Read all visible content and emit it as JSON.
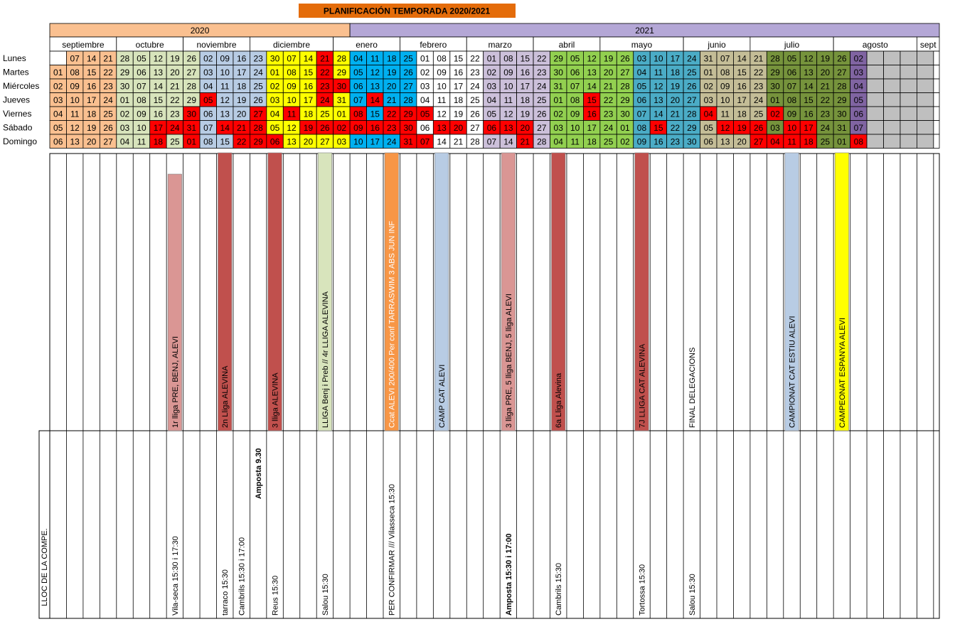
{
  "title": "PLANIFICACIÓN TEMPORADA 2020/2021",
  "years": [
    "2020",
    "2021"
  ],
  "months": [
    "septiembre",
    "octubre",
    "noviembre",
    "diciembre",
    "enero",
    "febrero",
    "marzo",
    "abril",
    "mayo",
    "junio",
    "julio",
    "agosto",
    "sept"
  ],
  "day_names": [
    "Lunes",
    "Martes",
    "Miércoles",
    "Jueves",
    "Viernes",
    "Sábado",
    "Domingo"
  ],
  "lloc_label": "LLOC DE LA COMPE.",
  "colors": {
    "title_bg": "#e46c0a",
    "year_2020": "#fac090",
    "year_2021": "#b4a7d6",
    "week_fill": {
      "peach": "#fac090",
      "pale_green": "#d8e4bc",
      "light_blue": "#b8cce4",
      "yellow": "#ffff00",
      "cyan": "#00b0f0",
      "white": "#ffffff",
      "lavender": "#ccc0da",
      "green": "#92d050",
      "mid_blue": "#4bacc6",
      "khaki": "#c4bd97",
      "olive": "#76933c",
      "purple": "#8064a2",
      "grey": "#bfbfbf"
    },
    "weekend_red": "#ff0000",
    "bar_colors": {
      "pink": "#da9694",
      "brick": "#c0504d",
      "pale_green": "#d8e4bc",
      "orange": "#f79646",
      "light_blue": "#b8cce4",
      "yellow": "#ffff00"
    }
  },
  "weeks": [
    {
      "month": "septiembre",
      "days": [
        "",
        "01",
        "02",
        "03",
        "04",
        "05",
        "06"
      ],
      "fill": "peach"
    },
    {
      "month": "septiembre",
      "days": [
        "07",
        "08",
        "09",
        "10",
        "11",
        "12",
        "13"
      ],
      "fill": "peach"
    },
    {
      "month": "septiembre",
      "days": [
        "14",
        "15",
        "16",
        "17",
        "18",
        "19",
        "20"
      ],
      "fill": "peach"
    },
    {
      "month": "septiembre",
      "days": [
        "21",
        "22",
        "23",
        "24",
        "25",
        "26",
        "27"
      ],
      "fill": "peach"
    },
    {
      "month": "octubre",
      "days": [
        "28",
        "29",
        "30",
        "01",
        "02",
        "03",
        "04"
      ],
      "fill": "pale_green"
    },
    {
      "month": "octubre",
      "days": [
        "05",
        "06",
        "07",
        "08",
        "09",
        "10",
        "11"
      ],
      "fill": "pale_green"
    },
    {
      "month": "octubre",
      "days": [
        "12",
        "13",
        "14",
        "15",
        "16",
        "17",
        "18"
      ],
      "fill": "pale_green"
    },
    {
      "month": "octubre",
      "days": [
        "19",
        "20",
        "21",
        "22",
        "23",
        "24",
        "25"
      ],
      "fill": "pale_green"
    },
    {
      "month": "noviembre",
      "days": [
        "26",
        "27",
        "28",
        "29",
        "30",
        "31",
        "01"
      ],
      "fill": "pale_green"
    },
    {
      "month": "noviembre",
      "days": [
        "02",
        "03",
        "04",
        "05",
        "06",
        "07",
        "08"
      ],
      "fill": "light_blue"
    },
    {
      "month": "noviembre",
      "days": [
        "09",
        "10",
        "11",
        "12",
        "13",
        "14",
        "15"
      ],
      "fill": "light_blue"
    },
    {
      "month": "noviembre",
      "days": [
        "16",
        "17",
        "18",
        "19",
        "20",
        "21",
        "22"
      ],
      "fill": "light_blue"
    },
    {
      "month": "diciembre",
      "days": [
        "23",
        "24",
        "25",
        "26",
        "27",
        "28",
        "29"
      ],
      "fill": "light_blue"
    },
    {
      "month": "diciembre",
      "days": [
        "30",
        "01",
        "02",
        "03",
        "04",
        "05",
        "06"
      ],
      "fill": "yellow"
    },
    {
      "month": "diciembre",
      "days": [
        "07",
        "08",
        "09",
        "10",
        "11",
        "12",
        "13"
      ],
      "fill": "yellow"
    },
    {
      "month": "diciembre",
      "days": [
        "14",
        "15",
        "16",
        "17",
        "18",
        "19",
        "20"
      ],
      "fill": "yellow"
    },
    {
      "month": "diciembre",
      "days": [
        "21",
        "22",
        "23",
        "24",
        "25",
        "26",
        "27"
      ],
      "fill": "yellow"
    },
    {
      "month": "enero",
      "days": [
        "28",
        "29",
        "30",
        "31",
        "01",
        "02",
        "03"
      ],
      "fill": "yellow"
    },
    {
      "month": "enero",
      "days": [
        "04",
        "05",
        "06",
        "07",
        "08",
        "09",
        "10"
      ],
      "fill": "cyan"
    },
    {
      "month": "enero",
      "days": [
        "11",
        "12",
        "13",
        "14",
        "15",
        "16",
        "17"
      ],
      "fill": "cyan"
    },
    {
      "month": "enero",
      "days": [
        "18",
        "19",
        "20",
        "21",
        "22",
        "23",
        "24"
      ],
      "fill": "cyan"
    },
    {
      "month": "febrero",
      "days": [
        "25",
        "26",
        "27",
        "28",
        "29",
        "30",
        "31"
      ],
      "fill": "cyan"
    },
    {
      "month": "febrero",
      "days": [
        "01",
        "02",
        "03",
        "04",
        "05",
        "06",
        "07"
      ],
      "fill": "white"
    },
    {
      "month": "febrero",
      "days": [
        "08",
        "09",
        "10",
        "11",
        "12",
        "13",
        "14"
      ],
      "fill": "white"
    },
    {
      "month": "febrero",
      "days": [
        "15",
        "16",
        "17",
        "18",
        "19",
        "20",
        "21"
      ],
      "fill": "white"
    },
    {
      "month": "marzo",
      "days": [
        "22",
        "23",
        "24",
        "25",
        "26",
        "27",
        "28"
      ],
      "fill": "white"
    },
    {
      "month": "marzo",
      "days": [
        "01",
        "02",
        "03",
        "04",
        "05",
        "06",
        "07"
      ],
      "fill": "lavender"
    },
    {
      "month": "marzo",
      "days": [
        "08",
        "09",
        "10",
        "11",
        "12",
        "13",
        "14"
      ],
      "fill": "lavender"
    },
    {
      "month": "marzo",
      "days": [
        "15",
        "16",
        "17",
        "18",
        "19",
        "20",
        "21"
      ],
      "fill": "lavender"
    },
    {
      "month": "abril",
      "days": [
        "22",
        "23",
        "24",
        "25",
        "26",
        "27",
        "28"
      ],
      "fill": "lavender"
    },
    {
      "month": "abril",
      "days": [
        "29",
        "30",
        "31",
        "01",
        "02",
        "03",
        "04"
      ],
      "fill": "green"
    },
    {
      "month": "abril",
      "days": [
        "05",
        "06",
        "07",
        "08",
        "09",
        "10",
        "11"
      ],
      "fill": "green"
    },
    {
      "month": "abril",
      "days": [
        "12",
        "13",
        "14",
        "15",
        "16",
        "17",
        "18"
      ],
      "fill": "green"
    },
    {
      "month": "mayo",
      "days": [
        "19",
        "20",
        "21",
        "22",
        "23",
        "24",
        "25"
      ],
      "fill": "green"
    },
    {
      "month": "mayo",
      "days": [
        "26",
        "27",
        "28",
        "29",
        "30",
        "01",
        "02"
      ],
      "fill": "green"
    },
    {
      "month": "mayo",
      "days": [
        "03",
        "04",
        "05",
        "06",
        "07",
        "08",
        "09"
      ],
      "fill": "mid_blue"
    },
    {
      "month": "mayo",
      "days": [
        "10",
        "11",
        "12",
        "13",
        "14",
        "15",
        "16"
      ],
      "fill": "mid_blue"
    },
    {
      "month": "mayo",
      "days": [
        "17",
        "18",
        "19",
        "20",
        "21",
        "22",
        "23"
      ],
      "fill": "mid_blue"
    },
    {
      "month": "junio",
      "days": [
        "24",
        "25",
        "26",
        "27",
        "28",
        "29",
        "30"
      ],
      "fill": "mid_blue"
    },
    {
      "month": "junio",
      "days": [
        "31",
        "01",
        "02",
        "03",
        "04",
        "05",
        "06"
      ],
      "fill": "khaki"
    },
    {
      "month": "junio",
      "days": [
        "07",
        "08",
        "09",
        "10",
        "11",
        "12",
        "13"
      ],
      "fill": "khaki"
    },
    {
      "month": "junio",
      "days": [
        "14",
        "15",
        "16",
        "17",
        "18",
        "19",
        "20"
      ],
      "fill": "khaki"
    },
    {
      "month": "julio",
      "days": [
        "21",
        "22",
        "23",
        "24",
        "25",
        "26",
        "27"
      ],
      "fill": "khaki"
    },
    {
      "month": "julio",
      "days": [
        "28",
        "29",
        "30",
        "01",
        "02",
        "03",
        "04"
      ],
      "fill": "olive"
    },
    {
      "month": "julio",
      "days": [
        "05",
        "06",
        "07",
        "08",
        "09",
        "10",
        "11"
      ],
      "fill": "olive"
    },
    {
      "month": "julio",
      "days": [
        "12",
        "13",
        "14",
        "15",
        "16",
        "17",
        "18"
      ],
      "fill": "olive"
    },
    {
      "month": "julio",
      "days": [
        "19",
        "20",
        "21",
        "22",
        "23",
        "24",
        "25"
      ],
      "fill": "olive"
    },
    {
      "month": "agosto",
      "days": [
        "26",
        "27",
        "28",
        "29",
        "30",
        "31",
        "01"
      ],
      "fill": "olive"
    },
    {
      "month": "agosto",
      "days": [
        "02",
        "03",
        "04",
        "05",
        "06",
        "07",
        "08"
      ],
      "fill": "purple"
    },
    {
      "month": "agosto",
      "days": [
        "",
        "",
        "",
        "",
        "",
        "",
        ""
      ],
      "fill": "grey"
    },
    {
      "month": "agosto",
      "days": [
        "",
        "",
        "",
        "",
        "",
        "",
        ""
      ],
      "fill": "grey"
    },
    {
      "month": "agosto",
      "days": [
        "",
        "",
        "",
        "",
        "",
        "",
        ""
      ],
      "fill": "grey"
    },
    {
      "month": "sept",
      "days": [
        "",
        "",
        "",
        "",
        "",
        "",
        ""
      ],
      "fill": "grey"
    }
  ],
  "red_days": [
    [
      6,
      5
    ],
    [
      6,
      6
    ],
    [
      7,
      5
    ],
    [
      8,
      4
    ],
    [
      8,
      5
    ],
    [
      8,
      6
    ],
    [
      9,
      3
    ],
    [
      10,
      5
    ],
    [
      11,
      5
    ],
    [
      11,
      6
    ],
    [
      12,
      4
    ],
    [
      12,
      5
    ],
    [
      12,
      6
    ],
    [
      13,
      6
    ],
    [
      14,
      4
    ],
    [
      15,
      5
    ],
    [
      16,
      0
    ],
    [
      16,
      1
    ],
    [
      16,
      2
    ],
    [
      16,
      3
    ],
    [
      16,
      5
    ],
    [
      17,
      2
    ],
    [
      17,
      5
    ],
    [
      18,
      4
    ],
    [
      18,
      5
    ],
    [
      19,
      3
    ],
    [
      19,
      5
    ],
    [
      20,
      4
    ],
    [
      20,
      5
    ],
    [
      21,
      4
    ],
    [
      21,
      5
    ],
    [
      21,
      6
    ],
    [
      22,
      4
    ],
    [
      22,
      6
    ],
    [
      23,
      5
    ],
    [
      24,
      5
    ],
    [
      26,
      5
    ],
    [
      27,
      5
    ],
    [
      28,
      5
    ],
    [
      28,
      6
    ],
    [
      32,
      3
    ],
    [
      32,
      4
    ],
    [
      36,
      5
    ],
    [
      39,
      4
    ],
    [
      40,
      5
    ],
    [
      41,
      5
    ],
    [
      42,
      5
    ],
    [
      42,
      6
    ],
    [
      43,
      4
    ],
    [
      43,
      6
    ],
    [
      44,
      5
    ],
    [
      44,
      6
    ],
    [
      45,
      5
    ],
    [
      45,
      6
    ],
    [
      48,
      6
    ]
  ],
  "events": [
    {
      "col": 7,
      "label": "1r lliga PRE, BENJ, ALEVI",
      "color": "pink",
      "start": 245,
      "venue": "Vila-seca 15:30 i 17:30",
      "bold": false
    },
    {
      "col": 10,
      "label": "2n Lliga ALEVINA",
      "color": "brick",
      "start": 215,
      "venue": "tarraco 15:30",
      "bold": false
    },
    {
      "col": 11,
      "label": "",
      "color": "",
      "start": 0,
      "venue": "Cambrils 15:30 i 17:00",
      "bold": false
    },
    {
      "col": 12,
      "label": "",
      "color": "",
      "start": 0,
      "venue": "Amposta 9.30",
      "bold": true,
      "venue_top": true
    },
    {
      "col": 13,
      "label": "3 lliga ALEVINA",
      "color": "brick",
      "start": 215,
      "venue": "Reus 15:30",
      "bold": false
    },
    {
      "col": 16,
      "label": "LLIGA Benj i Preb // 4r LLIGA ALEVINA",
      "color": "pale_green",
      "start": 215,
      "venue": "Salou 15:30",
      "bold": false
    },
    {
      "col": 20,
      "label": "Ccat ALEVI 200/400 Per conf   TARRASWIM 3 ABS JUN INF",
      "color": "orange",
      "start": 215,
      "venue": "PER CONFIRMAR ///   Vilasseca 15:30",
      "bold": false
    },
    {
      "col": 23,
      "label": "CAMP CAT ALEVI",
      "color": "light_blue",
      "start": 215,
      "venue": "",
      "bold": false
    },
    {
      "col": 27,
      "label": "3 lliga PRE, 5 lliga BENJ, 5 lliga ALEVI",
      "color": "pink",
      "start": 215,
      "venue": "Amposta 15:30 i 17:00",
      "bold": true
    },
    {
      "col": 30,
      "label": "6a Lliga Alevina",
      "color": "brick",
      "start": 215,
      "venue": "Cambrils 15:30",
      "bold": false
    },
    {
      "col": 35,
      "label": "7J LLIGA CAT ALEVINA",
      "color": "brick",
      "start": 215,
      "venue": "Tortossa 15:30",
      "bold": false
    },
    {
      "col": 38,
      "label": "FINAL DELEGACIONS",
      "color": "",
      "start": 0,
      "venue": "Salou 15:30",
      "bold": false
    },
    {
      "col": 44,
      "label": "CAMPIONAT CAT ESTIU ALEVI",
      "color": "light_blue",
      "start": 215,
      "venue": "",
      "bold": false
    },
    {
      "col": 47,
      "label": "CAMPEONAT ESPANYA ALEVI",
      "color": "yellow",
      "start": 215,
      "venue": "",
      "bold": false
    }
  ]
}
